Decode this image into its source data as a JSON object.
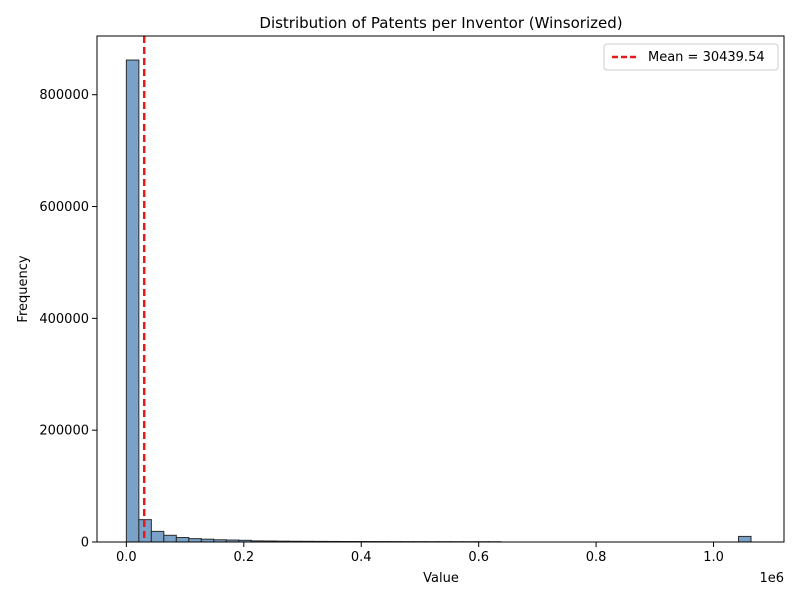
{
  "chart_data": {
    "type": "bar",
    "title": "Distribution of Patents per Inventor (Winsorized)",
    "xlabel": "Value",
    "ylabel": "Frequency",
    "x_offset_label": "1e6",
    "xlim": [
      -0.05,
      1.12
    ],
    "ylim": [
      0,
      905000
    ],
    "x_ticks": [
      0.0,
      0.2,
      0.4,
      0.6,
      0.8,
      1.0
    ],
    "x_tick_labels": [
      "0.0",
      "0.2",
      "0.4",
      "0.6",
      "0.8",
      "1.0"
    ],
    "y_ticks": [
      0,
      200000,
      400000,
      600000,
      800000
    ],
    "y_tick_labels": [
      "0",
      "200000",
      "400000",
      "600000",
      "800000"
    ],
    "bin_width": 0.02128,
    "bins_start": [
      0.0,
      0.02128,
      0.04255,
      0.06383,
      0.08511,
      0.10638,
      0.12766,
      0.14894,
      0.17021,
      0.19149,
      0.21277,
      0.23404,
      0.25532,
      0.2766,
      0.29787,
      0.31915,
      0.34043,
      0.3617,
      0.38298,
      0.40426,
      0.42553,
      0.44681,
      0.46809,
      0.48936,
      0.51064,
      0.53191,
      0.55319,
      0.57447,
      0.59574,
      0.61702,
      1.04255
    ],
    "frequencies": [
      862000,
      40000,
      19000,
      12000,
      8000,
      6000,
      5000,
      4000,
      3500,
      3000,
      2000,
      1800,
      1500,
      1300,
      1200,
      1100,
      1000,
      900,
      850,
      800,
      750,
      700,
      650,
      600,
      580,
      550,
      520,
      500,
      480,
      450,
      10000
    ],
    "bar_color": "#7aa2c8",
    "bar_edge_color": "#2b2b2b",
    "mean_line": {
      "x": 0.03043954,
      "color": "#e41a1c",
      "style": "dashed",
      "label": "Mean = 30439.54"
    },
    "legend_position": "top-right",
    "grid": false
  }
}
